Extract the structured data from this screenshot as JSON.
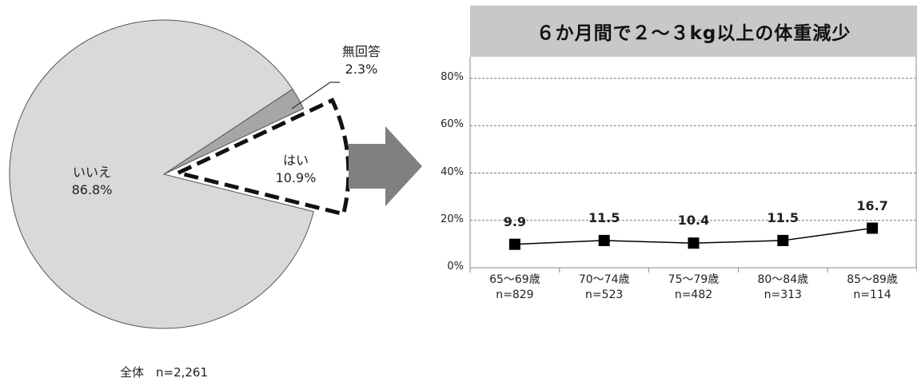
{
  "chart_data": [
    {
      "type": "pie",
      "slices": [
        {
          "name": "いいえ",
          "value": 86.8,
          "label_value": "86.8%",
          "color": "#d9d9d9",
          "emphasized": false
        },
        {
          "name": "無回答",
          "value": 2.3,
          "label_value": "2.3%",
          "color": "#a6a6a6",
          "emphasized": false
        },
        {
          "name": "はい",
          "value": 10.9,
          "label_value": "10.9%",
          "color": "#ffffff",
          "emphasized": true
        }
      ],
      "footer": "全体　n=2,261"
    },
    {
      "type": "line",
      "title": "６か月間で２～３kg以上の体重減少",
      "categories": [
        {
          "label": "65～69歳",
          "n": "n=829"
        },
        {
          "label": "70～74歳",
          "n": "n=523"
        },
        {
          "label": "75～79歳",
          "n": "n=482"
        },
        {
          "label": "80～84歳",
          "n": "n=313"
        },
        {
          "label": "85～89歳",
          "n": "n=114"
        }
      ],
      "series": [
        {
          "values": [
            9.9,
            11.5,
            10.4,
            11.5,
            16.7
          ],
          "value_labels": [
            "9.9",
            "11.5",
            "10.4",
            "11.5",
            "16.7"
          ],
          "color": "#000000",
          "marker": "square"
        }
      ],
      "y_ticks": [
        "0%",
        "20%",
        "40%",
        "60%",
        "80%"
      ],
      "ylim": [
        0,
        80
      ],
      "grid": true,
      "grid_style": "dashed"
    }
  ]
}
